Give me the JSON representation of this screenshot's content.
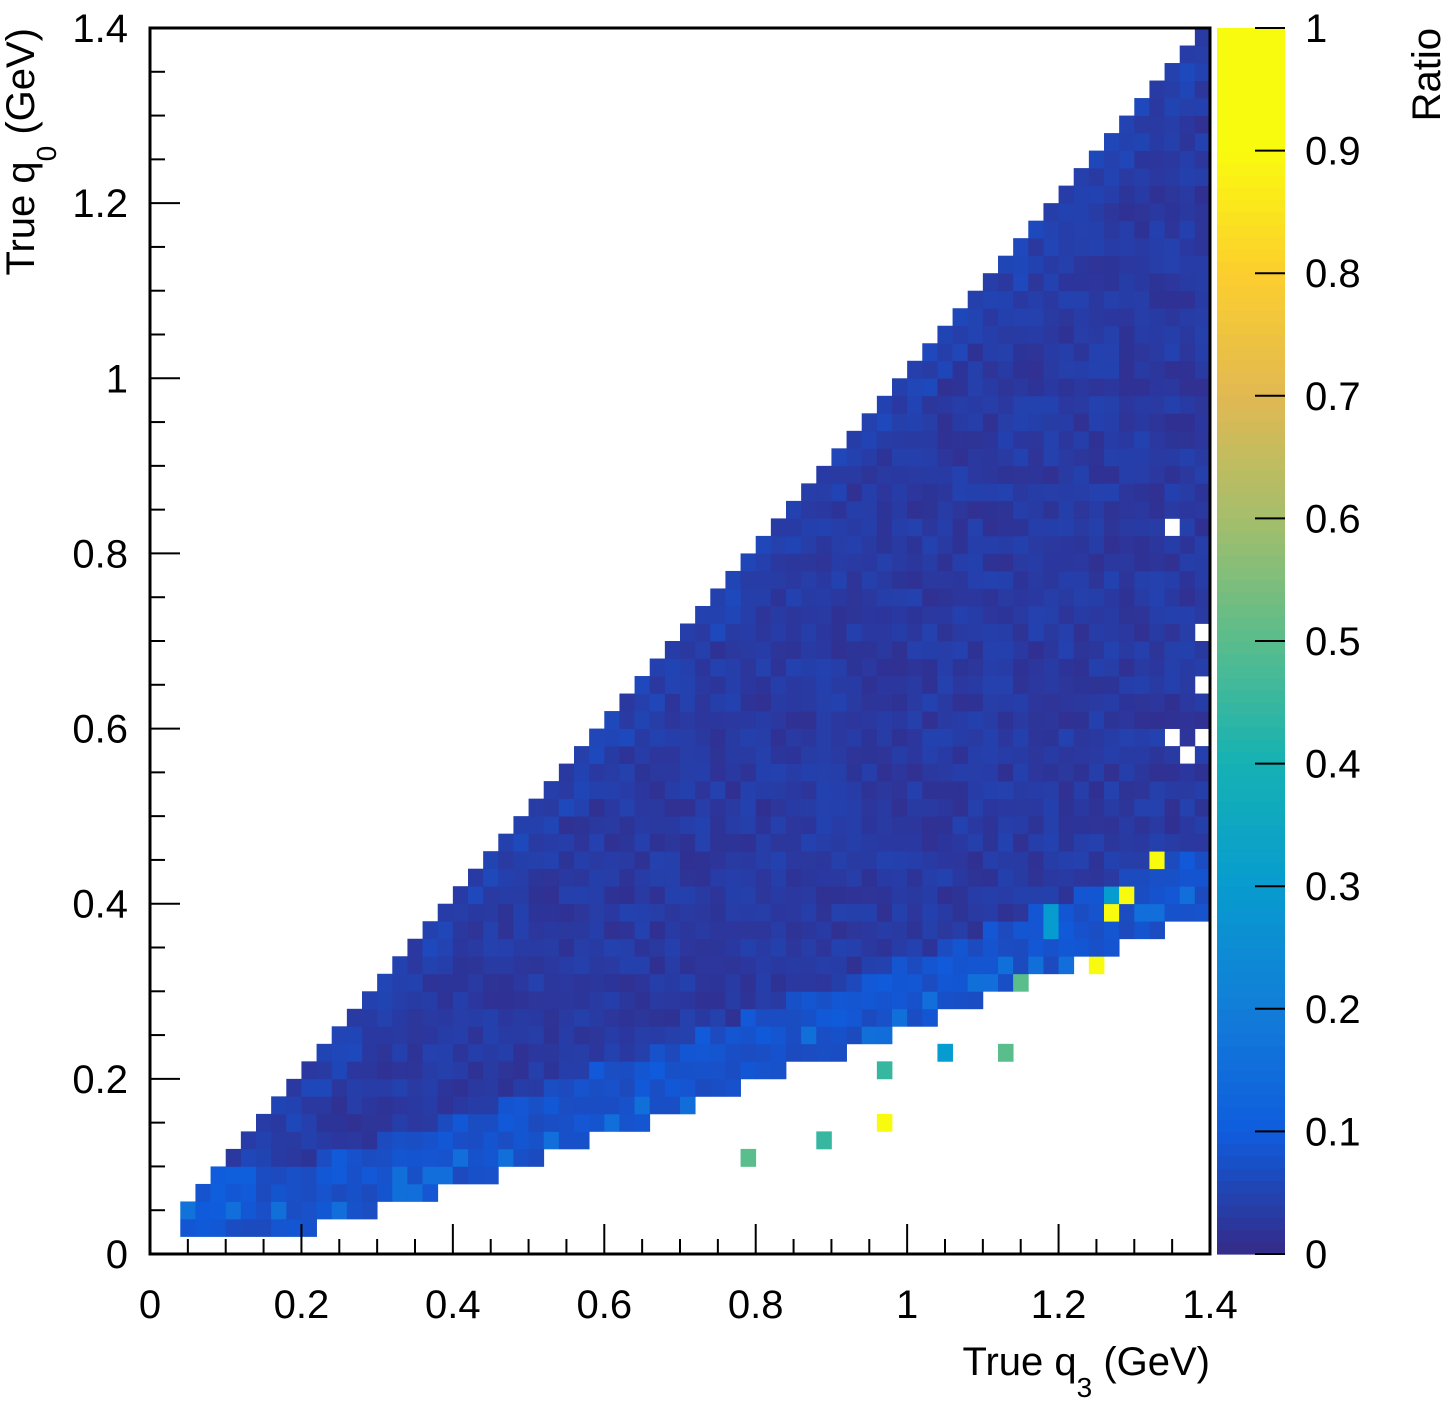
{
  "chart_data": {
    "type": "heatmap",
    "title": "",
    "xlabel": {
      "main": "True q",
      "sub": "3",
      "unit": " (GeV)"
    },
    "ylabel": {
      "main": "True q",
      "sub": "0",
      "unit": " (GeV)"
    },
    "zlabel": "Ratio",
    "xlim": [
      0,
      1.4
    ],
    "ylim": [
      0,
      1.4
    ],
    "zlim": [
      0,
      1
    ],
    "x_ticks": [
      "0",
      "0.2",
      "0.4",
      "0.6",
      "0.8",
      "1",
      "1.2",
      "1.4"
    ],
    "y_ticks": [
      "0",
      "0.2",
      "0.4",
      "0.6",
      "0.8",
      "1",
      "1.2",
      "1.4"
    ],
    "z_ticks": [
      "0",
      "0.1",
      "0.2",
      "0.3",
      "0.4",
      "0.5",
      "0.6",
      "0.7",
      "0.8",
      "0.9",
      "1"
    ],
    "colormap": "parula",
    "bin_width": 0.02,
    "region_ratio_approx": {
      "bulk": 0.03,
      "lower_edge": 0.08
    },
    "notable_cells": [
      {
        "x": 1.33,
        "y": 0.45,
        "ratio": 1.0
      },
      {
        "x": 1.29,
        "y": 0.41,
        "ratio": 1.0
      },
      {
        "x": 1.27,
        "y": 0.39,
        "ratio": 1.0
      },
      {
        "x": 1.25,
        "y": 0.33,
        "ratio": 1.0
      },
      {
        "x": 0.97,
        "y": 0.15,
        "ratio": 1.0
      },
      {
        "x": 1.15,
        "y": 0.31,
        "ratio": 0.5
      },
      {
        "x": 1.13,
        "y": 0.23,
        "ratio": 0.5
      },
      {
        "x": 0.97,
        "y": 0.21,
        "ratio": 0.45
      },
      {
        "x": 0.89,
        "y": 0.13,
        "ratio": 0.45
      },
      {
        "x": 0.79,
        "y": 0.11,
        "ratio": 0.5
      },
      {
        "x": 1.19,
        "y": 0.37,
        "ratio": 0.3
      },
      {
        "x": 1.19,
        "y": 0.39,
        "ratio": 0.3
      },
      {
        "x": 1.27,
        "y": 0.41,
        "ratio": 0.3
      },
      {
        "x": 1.05,
        "y": 0.23,
        "ratio": 0.3
      }
    ],
    "empty_cells": [
      {
        "x": 1.35,
        "y": 0.83
      },
      {
        "x": 1.39,
        "y": 0.71
      },
      {
        "x": 1.39,
        "y": 0.65
      },
      {
        "x": 1.39,
        "y": 0.59
      },
      {
        "x": 1.37,
        "y": 0.57
      },
      {
        "x": 1.35,
        "y": 0.59
      }
    ]
  }
}
